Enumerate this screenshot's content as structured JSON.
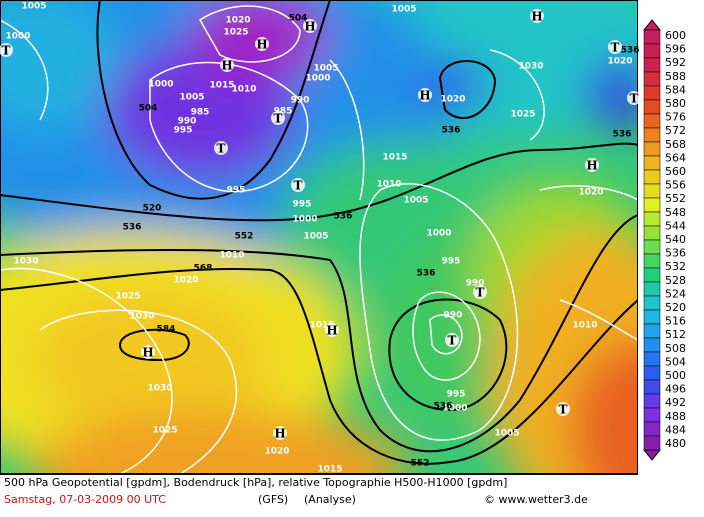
{
  "map": {
    "highs_lows": [
      "H",
      "H",
      "H",
      "H",
      "H",
      "H",
      "H",
      "H",
      "H",
      "T",
      "T",
      "T",
      "T",
      "T",
      "T",
      "T",
      "T",
      "T"
    ],
    "geopotential": [
      504,
      504,
      520,
      536,
      552,
      536,
      568,
      584,
      536,
      536,
      552,
      536,
      536,
      536
    ],
    "isobars": [
      1005,
      1000,
      1020,
      1025,
      1005,
      1030,
      1025,
      1020,
      1005,
      1000,
      990,
      985,
      1000,
      1005,
      1015,
      1010,
      985,
      990,
      995,
      995,
      1015,
      1010,
      1005,
      995,
      1000,
      1005,
      1000,
      995,
      990,
      990,
      995,
      1000,
      1005,
      1010,
      1020,
      1020,
      1020,
      1025,
      1030,
      1030,
      1025,
      1020,
      1010,
      1015,
      1030,
      1015
    ]
  },
  "colorbar": {
    "labels": [
      600,
      596,
      592,
      588,
      584,
      580,
      576,
      572,
      568,
      564,
      560,
      556,
      552,
      548,
      544,
      540,
      536,
      532,
      528,
      524,
      520,
      516,
      512,
      508,
      504,
      500,
      496,
      492,
      488,
      484,
      480
    ]
  },
  "caption": {
    "line1": "500 hPa Geopotential [gpdm], Bodendruck [hPa], relative Topographie H500-H1000 [gpdm]",
    "date": "Samstag, 07-03-2009  00 UTC",
    "model": "(GFS)",
    "run": "(Analyse)",
    "credit": "© www.wetter3.de"
  }
}
